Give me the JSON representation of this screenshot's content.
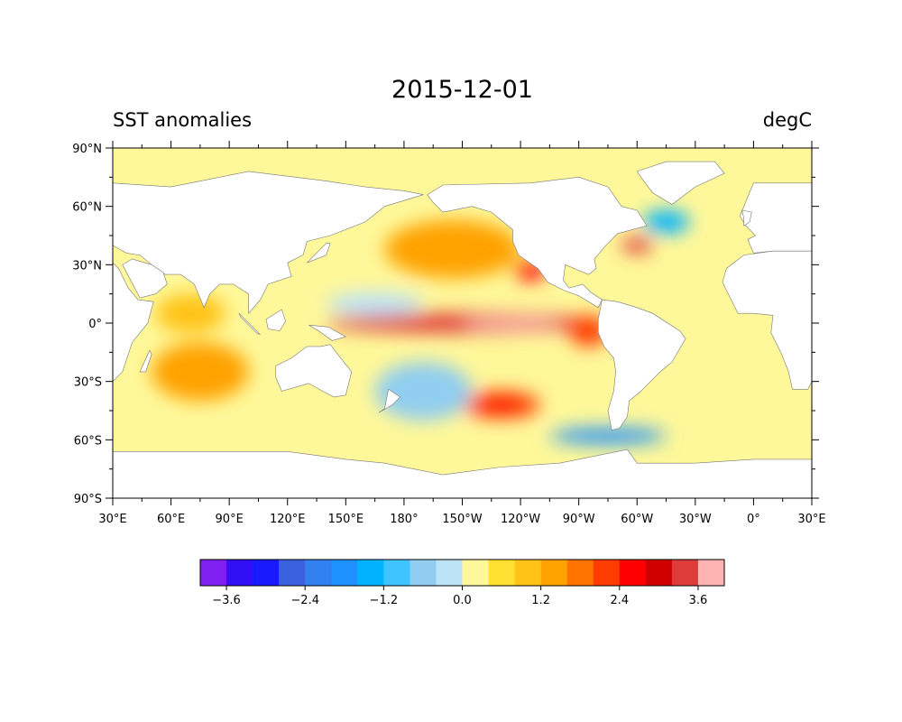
{
  "map": {
    "title": "2015-12-01",
    "left_title": "SST anomalies",
    "right_title": "degC",
    "projection": "equirectangular, central longitude 210°",
    "extent": {
      "lon_min_east": 30,
      "lon_max_east": 390,
      "lat_min": -90,
      "lat_max": 90
    },
    "lat_ticks": [
      90,
      60,
      30,
      0,
      -30,
      -60,
      -90
    ],
    "lat_labels": [
      "90°N",
      "60°N",
      "30°N",
      "0°",
      "30°S",
      "60°S",
      "90°S"
    ],
    "lon_ticks": [
      30,
      60,
      90,
      120,
      150,
      180,
      210,
      240,
      270,
      300,
      330,
      360,
      390
    ],
    "lon_labels": [
      "30°E",
      "60°E",
      "90°E",
      "120°E",
      "150°E",
      "180°",
      "150°W",
      "120°W",
      "90°W",
      "60°W",
      "30°W",
      "0°",
      "30°E"
    ],
    "land_color": "#ffffff",
    "regions": [
      {
        "name": "el-nino-tongue",
        "lon": 210,
        "lat": 0,
        "dlon": 70,
        "dlat": 5,
        "level": 3.3
      },
      {
        "name": "el-nino-core",
        "lon": 235,
        "lat": 0,
        "dlon": 25,
        "dlat": 2.5,
        "level": 4.0
      },
      {
        "name": "peru-coast",
        "lon": 275,
        "lat": -4,
        "dlon": 10,
        "dlat": 8,
        "level": 2.2
      },
      {
        "name": "baja-coast",
        "lon": 245,
        "lat": 27,
        "dlon": 8,
        "dlat": 5,
        "level": 2.6
      },
      {
        "name": "ne-pacific",
        "lon": 205,
        "lat": 38,
        "dlon": 35,
        "dlat": 15,
        "level": 1.2
      },
      {
        "name": "south-pacific-warm",
        "lon": 230,
        "lat": -42,
        "dlon": 20,
        "dlat": 7,
        "level": 2.2
      },
      {
        "name": "south-pacific-core",
        "lon": 230,
        "lat": -42,
        "dlon": 10,
        "dlat": 3,
        "level": 2.7
      },
      {
        "name": "sw-pacific-cool",
        "lon": 190,
        "lat": -35,
        "dlon": 25,
        "dlat": 15,
        "level": -0.6
      },
      {
        "name": "west-pacific-cool",
        "lon": 165,
        "lat": 10,
        "dlon": 25,
        "dlat": 6,
        "level": -0.3
      },
      {
        "name": "north-atlantic-cool",
        "lon": 315,
        "lat": 52,
        "dlon": 12,
        "dlat": 6,
        "level": -1.5
      },
      {
        "name": "gulf-stream",
        "lon": 300,
        "lat": 40,
        "dlon": 8,
        "dlat": 4,
        "level": 3.2
      },
      {
        "name": "southern-ocean-cool",
        "lon": 285,
        "lat": -58,
        "dlon": 30,
        "dlat": 4,
        "level": -1.6
      },
      {
        "name": "indian-ocean-warm",
        "lon": 75,
        "lat": -25,
        "dlon": 25,
        "dlat": 15,
        "level": 1.5
      },
      {
        "name": "indian-ocean-north",
        "lon": 70,
        "lat": 5,
        "dlon": 18,
        "dlat": 10,
        "level": 1.0
      }
    ],
    "land_masses": [
      {
        "name": "north-america",
        "points": [
          [
            192,
            66
          ],
          [
            200,
            71
          ],
          [
            245,
            72
          ],
          [
            270,
            75
          ],
          [
            285,
            70
          ],
          [
            292,
            60
          ],
          [
            300,
            58
          ],
          [
            305,
            50
          ],
          [
            290,
            46
          ],
          [
            284,
            40
          ],
          [
            278,
            33
          ],
          [
            279,
            28
          ],
          [
            275,
            25
          ],
          [
            263,
            30
          ],
          [
            262,
            22
          ],
          [
            265,
            18
          ],
          [
            272,
            20
          ],
          [
            276,
            16
          ],
          [
            282,
            12
          ],
          [
            280,
            8
          ],
          [
            270,
            14
          ],
          [
            262,
            17
          ],
          [
            254,
            21
          ],
          [
            249,
            28
          ],
          [
            239,
            35
          ],
          [
            236,
            42
          ],
          [
            236,
            48
          ],
          [
            225,
            57
          ],
          [
            215,
            60
          ],
          [
            200,
            57
          ],
          [
            195,
            62
          ]
        ]
      },
      {
        "name": "greenland",
        "points": [
          [
            300,
            78
          ],
          [
            315,
            83
          ],
          [
            340,
            83
          ],
          [
            345,
            77
          ],
          [
            330,
            70
          ],
          [
            318,
            61
          ],
          [
            308,
            67
          ],
          [
            302,
            75
          ]
        ]
      },
      {
        "name": "south-america",
        "points": [
          [
            282,
            12
          ],
          [
            290,
            11
          ],
          [
            300,
            8
          ],
          [
            308,
            5
          ],
          [
            322,
            -4
          ],
          [
            325,
            -8
          ],
          [
            318,
            -20
          ],
          [
            312,
            -25
          ],
          [
            302,
            -35
          ],
          [
            296,
            -40
          ],
          [
            295,
            -48
          ],
          [
            291,
            -54
          ],
          [
            287,
            -55
          ],
          [
            285,
            -45
          ],
          [
            288,
            -35
          ],
          [
            289,
            -25
          ],
          [
            288,
            -18
          ],
          [
            283,
            -12
          ],
          [
            280,
            -5
          ],
          [
            280,
            2
          ]
        ]
      },
      {
        "name": "eurasia",
        "points": [
          [
            360,
            36
          ],
          [
            370,
            37
          ],
          [
            385,
            37
          ],
          [
            392,
            37
          ],
          [
            392,
            72
          ],
          [
            360,
            72
          ],
          [
            355,
            60
          ],
          [
            353,
            55
          ],
          [
            356,
            50
          ],
          [
            361,
            45
          ],
          [
            357,
            43
          ]
        ]
      },
      {
        "name": "africa",
        "points": [
          [
            344,
            21
          ],
          [
            347,
            15
          ],
          [
            352,
            5
          ],
          [
            360,
            5
          ],
          [
            370,
            4
          ],
          [
            369,
            -5
          ],
          [
            374,
            -15
          ],
          [
            378,
            -25
          ],
          [
            380,
            -34
          ],
          [
            388,
            -34
          ],
          [
            392,
            -26
          ],
          [
            392,
            37
          ],
          [
            370,
            37
          ],
          [
            355,
            35
          ],
          [
            346,
            28
          ]
        ]
      },
      {
        "name": "asia",
        "points": [
          [
            30,
            40
          ],
          [
            30,
            72
          ],
          [
            60,
            70
          ],
          [
            100,
            78
          ],
          [
            140,
            73
          ],
          [
            160,
            70
          ],
          [
            180,
            68
          ],
          [
            190,
            66
          ],
          [
            170,
            60
          ],
          [
            160,
            52
          ],
          [
            142,
            45
          ],
          [
            130,
            42
          ],
          [
            128,
            35
          ],
          [
            120,
            31
          ],
          [
            122,
            24
          ],
          [
            110,
            20
          ],
          [
            106,
            12
          ],
          [
            100,
            5
          ],
          [
            100,
            15
          ],
          [
            92,
            20
          ],
          [
            85,
            20
          ],
          [
            80,
            15
          ],
          [
            77,
            8
          ],
          [
            72,
            20
          ],
          [
            65,
            25
          ],
          [
            57,
            25
          ],
          [
            50,
            30
          ],
          [
            44,
            35
          ],
          [
            37,
            36
          ]
        ]
      },
      {
        "name": "arabia",
        "points": [
          [
            35,
            30
          ],
          [
            44,
            13
          ],
          [
            52,
            15
          ],
          [
            58,
            20
          ],
          [
            56,
            26
          ],
          [
            50,
            30
          ],
          [
            40,
            33
          ]
        ]
      },
      {
        "name": "east-africa-edge",
        "points": [
          [
            30,
            31
          ],
          [
            33,
            28
          ],
          [
            38,
            18
          ],
          [
            43,
            12
          ],
          [
            51,
            11
          ],
          [
            48,
            0
          ],
          [
            40,
            -10
          ],
          [
            35,
            -25
          ],
          [
            30,
            -30
          ]
        ]
      },
      {
        "name": "australia",
        "points": [
          [
            114,
            -22
          ],
          [
            122,
            -18
          ],
          [
            130,
            -12
          ],
          [
            137,
            -12
          ],
          [
            142,
            -11
          ],
          [
            145,
            -15
          ],
          [
            153,
            -25
          ],
          [
            150,
            -37
          ],
          [
            144,
            -38
          ],
          [
            138,
            -35
          ],
          [
            131,
            -31
          ],
          [
            117,
            -35
          ],
          [
            114,
            -28
          ]
        ]
      },
      {
        "name": "madagascar",
        "points": [
          [
            44,
            -25
          ],
          [
            49,
            -14
          ],
          [
            50,
            -16
          ],
          [
            47,
            -25
          ]
        ]
      },
      {
        "name": "borneo",
        "points": [
          [
            109,
            2
          ],
          [
            117,
            7
          ],
          [
            119,
            1
          ],
          [
            116,
            -4
          ],
          [
            110,
            -3
          ]
        ]
      },
      {
        "name": "sumatra",
        "points": [
          [
            95,
            5
          ],
          [
            106,
            -6
          ],
          [
            104,
            -5
          ],
          [
            96,
            3
          ]
        ]
      },
      {
        "name": "new-guinea",
        "points": [
          [
            131,
            -1
          ],
          [
            141,
            -2
          ],
          [
            150,
            -7
          ],
          [
            143,
            -9
          ],
          [
            136,
            -4
          ]
        ]
      },
      {
        "name": "new-zealand",
        "points": [
          [
            172,
            -34
          ],
          [
            178,
            -38
          ],
          [
            174,
            -42
          ],
          [
            167,
            -46
          ],
          [
            170,
            -44
          ]
        ]
      },
      {
        "name": "japan",
        "points": [
          [
            130,
            31
          ],
          [
            140,
            35
          ],
          [
            142,
            41
          ],
          [
            140,
            41
          ],
          [
            133,
            34
          ]
        ]
      },
      {
        "name": "uk",
        "points": [
          [
            355,
            50
          ],
          [
            358,
            52
          ],
          [
            359,
            57
          ],
          [
            354,
            58
          ],
          [
            355,
            54
          ]
        ]
      },
      {
        "name": "antarctica",
        "points": [
          [
            30,
            -66
          ],
          [
            60,
            -66
          ],
          [
            90,
            -66
          ],
          [
            120,
            -66
          ],
          [
            150,
            -70
          ],
          [
            170,
            -72
          ],
          [
            200,
            -78
          ],
          [
            230,
            -74
          ],
          [
            260,
            -72
          ],
          [
            295,
            -65
          ],
          [
            300,
            -72
          ],
          [
            330,
            -72
          ],
          [
            360,
            -70
          ],
          [
            390,
            -70
          ],
          [
            390,
            -90
          ],
          [
            30,
            -90
          ]
        ]
      }
    ]
  },
  "colorbar": {
    "levels": [
      -3.6,
      -2.4,
      -1.2,
      0.0,
      1.2,
      2.4,
      3.6
    ],
    "tick_labels": [
      "−3.6",
      "−2.4",
      "−1.2",
      "0.0",
      "1.2",
      "2.4",
      "3.6"
    ],
    "min": -4.0,
    "max": 4.0,
    "step": 0.4,
    "colors": [
      "#7f20f0",
      "#3110f5",
      "#1a1aff",
      "#3a62e0",
      "#3380f0",
      "#1f90ff",
      "#00b2ff",
      "#40c4ff",
      "#90cdf0",
      "#bde3f7",
      "#fff89a",
      "#ffe033",
      "#ffc317",
      "#ffa200",
      "#ff7300",
      "#ff3d00",
      "#ff0000",
      "#d10000",
      "#e03b3b",
      "#ffb3b3"
    ]
  }
}
